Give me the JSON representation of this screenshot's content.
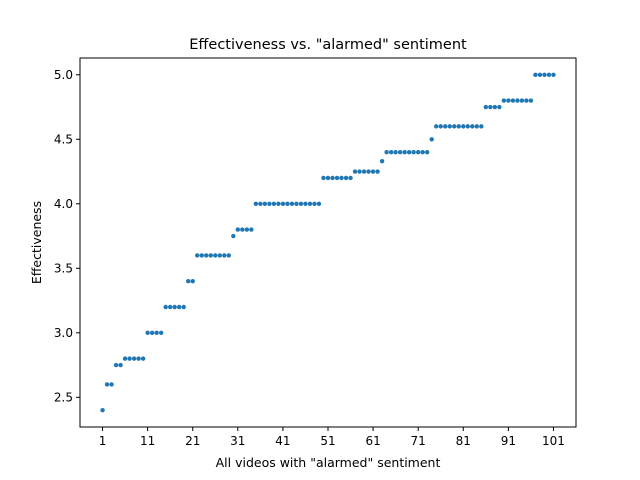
{
  "chart_data": {
    "type": "scatter",
    "title": "Effectiveness vs. \"alarmed\" sentiment",
    "xlabel": "All videos with \"alarmed\" sentiment",
    "ylabel": "Effectiveness",
    "xlim": [
      -4,
      106
    ],
    "ylim": [
      2.27,
      5.13
    ],
    "xticks": [
      1,
      11,
      21,
      31,
      41,
      51,
      61,
      71,
      81,
      91,
      101
    ],
    "yticks": [
      2.5,
      3.0,
      3.5,
      4.0,
      4.5,
      5.0
    ],
    "ytick_labels": [
      "2.5",
      "3.0",
      "3.5",
      "4.0",
      "4.5",
      "5.0"
    ],
    "marker_color": "#1f77b4",
    "grid": false,
    "x": [
      1,
      2,
      3,
      4,
      5,
      6,
      7,
      8,
      9,
      10,
      11,
      12,
      13,
      14,
      15,
      16,
      17,
      18,
      19,
      20,
      21,
      22,
      23,
      24,
      25,
      26,
      27,
      28,
      29,
      30,
      31,
      32,
      33,
      34,
      35,
      36,
      37,
      38,
      39,
      40,
      41,
      42,
      43,
      44,
      45,
      46,
      47,
      48,
      49,
      50,
      51,
      52,
      53,
      54,
      55,
      56,
      57,
      58,
      59,
      60,
      61,
      62,
      63,
      64,
      65,
      66,
      67,
      68,
      69,
      70,
      71,
      72,
      73,
      74,
      75,
      76,
      77,
      78,
      79,
      80,
      81,
      82,
      83,
      84,
      85,
      86,
      87,
      88,
      89,
      90,
      91,
      92,
      93,
      94,
      95,
      96,
      97,
      98,
      99,
      100,
      101
    ],
    "y": [
      2.4,
      2.6,
      2.6,
      2.75,
      2.75,
      2.8,
      2.8,
      2.8,
      2.8,
      2.8,
      3.0,
      3.0,
      3.0,
      3.0,
      3.2,
      3.2,
      3.2,
      3.2,
      3.2,
      3.4,
      3.4,
      3.6,
      3.6,
      3.6,
      3.6,
      3.6,
      3.6,
      3.6,
      3.6,
      3.75,
      3.8,
      3.8,
      3.8,
      3.8,
      4.0,
      4.0,
      4.0,
      4.0,
      4.0,
      4.0,
      4.0,
      4.0,
      4.0,
      4.0,
      4.0,
      4.0,
      4.0,
      4.0,
      4.0,
      4.2,
      4.2,
      4.2,
      4.2,
      4.2,
      4.2,
      4.2,
      4.25,
      4.25,
      4.25,
      4.25,
      4.25,
      4.25,
      4.33,
      4.4,
      4.4,
      4.4,
      4.4,
      4.4,
      4.4,
      4.4,
      4.4,
      4.4,
      4.4,
      4.5,
      4.6,
      4.6,
      4.6,
      4.6,
      4.6,
      4.6,
      4.6,
      4.6,
      4.6,
      4.6,
      4.6,
      4.75,
      4.75,
      4.75,
      4.75,
      4.8,
      4.8,
      4.8,
      4.8,
      4.8,
      4.8,
      4.8,
      5.0,
      5.0,
      5.0,
      5.0,
      5.0
    ]
  }
}
